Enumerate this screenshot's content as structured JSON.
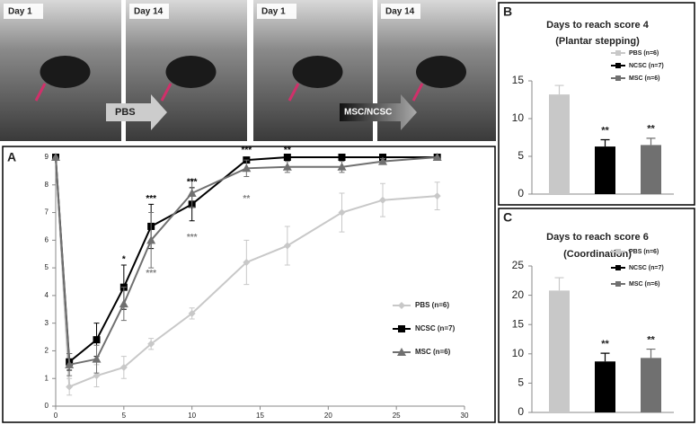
{
  "photos": [
    {
      "label": "Day 1"
    },
    {
      "label": "Day 14"
    },
    {
      "label": "Day 1"
    },
    {
      "label": "Day 14"
    }
  ],
  "arrows": [
    {
      "label": "PBS"
    },
    {
      "label": "MSC/NCSC"
    }
  ],
  "chart_data": [
    {
      "type": "line",
      "label": "A",
      "x": [
        0,
        1,
        3,
        5,
        7,
        10,
        14,
        17,
        21,
        24,
        28
      ],
      "series": [
        {
          "name": "PBS (n=6)",
          "color": "#c8c8c8",
          "marker": "diamond",
          "values": [
            9,
            0.7,
            1.1,
            1.4,
            2.25,
            3.35,
            5.2,
            5.8,
            7.0,
            7.45,
            7.6
          ],
          "errors": [
            0,
            0.3,
            0.4,
            0.4,
            0.2,
            0.2,
            0.8,
            0.7,
            0.7,
            0.6,
            0.5
          ]
        },
        {
          "name": "NCSC (n=7)",
          "color": "#000000",
          "marker": "square",
          "values": [
            9,
            1.6,
            2.4,
            4.3,
            6.5,
            7.3,
            8.9,
            9,
            9,
            9,
            9
          ],
          "errors": [
            0,
            0.3,
            0.6,
            0.8,
            0.8,
            0.6,
            0.1,
            0,
            0,
            0,
            0
          ]
        },
        {
          "name": "MSC (n=6)",
          "color": "#707070",
          "marker": "triangle",
          "values": [
            9,
            1.5,
            1.7,
            3.7,
            6.0,
            7.7,
            8.6,
            8.65,
            8.65,
            8.85,
            9
          ],
          "errors": [
            0,
            0.4,
            0.5,
            0.6,
            1.0,
            0.5,
            0.3,
            0.2,
            0.2,
            0.1,
            0
          ]
        }
      ],
      "annotations": [
        {
          "text": "*",
          "x": 5,
          "y": 5.3,
          "color": "#000000"
        },
        {
          "text": "***",
          "x": 7,
          "y": 7.5,
          "color": "#000000"
        },
        {
          "text": "***",
          "x": 10,
          "y": 8.1,
          "color": "#000000"
        },
        {
          "text": "***",
          "x": 14,
          "y": 9.25,
          "color": "#000000"
        },
        {
          "text": "**",
          "x": 17,
          "y": 9.25,
          "color": "#000000"
        },
        {
          "text": "***",
          "x": 7,
          "y": 4.8,
          "color": "#808080"
        },
        {
          "text": "***",
          "x": 10,
          "y": 6.1,
          "color": "#808080"
        },
        {
          "text": "**",
          "x": 14,
          "y": 7.5,
          "color": "#808080"
        }
      ],
      "xlim": [
        0,
        30
      ],
      "xticks": [
        0,
        5,
        10,
        15,
        20,
        25,
        30
      ],
      "ylim": [
        0,
        9
      ],
      "yticks": [
        0,
        1,
        2,
        3,
        4,
        5,
        6,
        7,
        8,
        9
      ],
      "grid": false
    },
    {
      "type": "bar",
      "label": "B",
      "title": "Days to reach score 4",
      "subtitle": "(Plantar stepping)",
      "series": [
        {
          "name": "PBS (n=6)",
          "color": "#c8c8c8",
          "values": [
            13.2
          ],
          "errors": [
            1.2
          ]
        },
        {
          "name": "NCSC (n=7)",
          "color": "#000000",
          "values": [
            6.3
          ],
          "errors": [
            0.9
          ],
          "annotation": "**"
        },
        {
          "name": "MSC (n=6)",
          "color": "#707070",
          "values": [
            6.5
          ],
          "errors": [
            0.9
          ],
          "annotation": "**"
        }
      ],
      "ylim": [
        0,
        15
      ],
      "yticks": [
        0,
        5,
        10,
        15
      ]
    },
    {
      "type": "bar",
      "label": "C",
      "title": "Days to reach score 6",
      "subtitle": "(Coordination)",
      "series": [
        {
          "name": "PBS (n=6)",
          "color": "#c8c8c8",
          "values": [
            20.8
          ],
          "errors": [
            2.2
          ]
        },
        {
          "name": "NCSC (n=7)",
          "color": "#000000",
          "values": [
            8.7
          ],
          "errors": [
            1.4
          ],
          "annotation": "**"
        },
        {
          "name": "MSC (n=6)",
          "color": "#707070",
          "values": [
            9.3
          ],
          "errors": [
            1.5
          ],
          "annotation": "**"
        }
      ],
      "ylim": [
        0,
        25
      ],
      "yticks": [
        0,
        5,
        10,
        15,
        20,
        25
      ]
    }
  ]
}
